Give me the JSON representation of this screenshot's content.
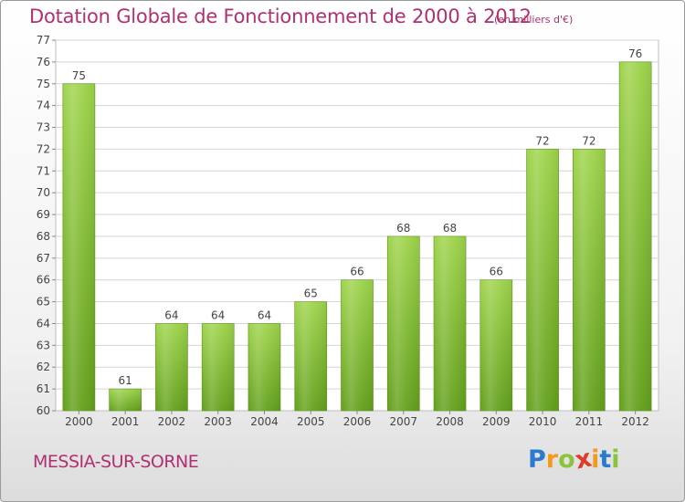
{
  "chart_data": {
    "type": "bar",
    "title": "Dotation Globale de Fonctionnement de 2000 à 2012",
    "subtitle": "(en milliers d'€)",
    "categories": [
      "2000",
      "2001",
      "2002",
      "2003",
      "2004",
      "2005",
      "2006",
      "2007",
      "2008",
      "2009",
      "2010",
      "2011",
      "2012"
    ],
    "values": [
      75,
      61,
      64,
      64,
      64,
      65,
      66,
      68,
      68,
      66,
      72,
      72,
      76
    ],
    "data_labels": [
      "75",
      "61",
      "64",
      "64",
      "64",
      "65",
      "66",
      "68",
      "68",
      "66",
      "72",
      "72",
      "76"
    ],
    "ylim": [
      60,
      77
    ],
    "yticks": [
      "60",
      "61",
      "62",
      "63",
      "64",
      "65",
      "66",
      "67",
      "68",
      "69",
      "70",
      "71",
      "72",
      "73",
      "74",
      "75",
      "76",
      "77"
    ],
    "grid": true,
    "bar_color": "#7fbf33"
  },
  "footer": {
    "city": "MESSIA-SUR-SORNE",
    "logo": {
      "letters": [
        "P",
        "r",
        "o",
        "x",
        "i",
        "t",
        "i"
      ],
      "colors": [
        "#2a7bd0",
        "#f39a1e",
        "#8cc23c",
        "#e03a2a",
        "#f39a1e",
        "#2a7bd0",
        "#8cc23c"
      ]
    }
  },
  "colors": {
    "accent": "#b03070",
    "grid": "#d4d4d4"
  }
}
